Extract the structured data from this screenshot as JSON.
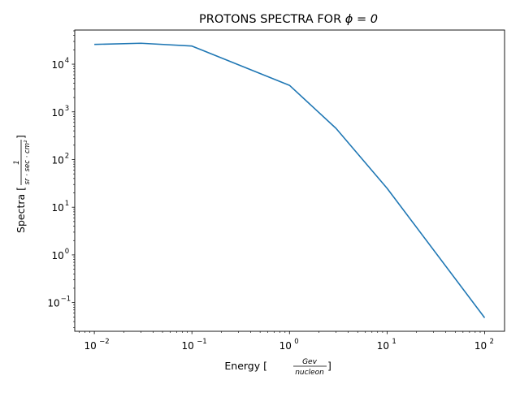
{
  "chart_data": {
    "type": "line",
    "title": "PROTONS SPECTRA FOR",
    "title_math": "ϕ = 0",
    "xlabel": "Energy [",
    "xlabel_frac": {
      "num": "Gev",
      "den": "nucleon"
    },
    "xlabel_close": "]",
    "ylabel": "Spectra [",
    "ylabel_frac": {
      "num": "1",
      "den": "sr · sec · cm²"
    },
    "ylabel_close": "]",
    "xscale": "log",
    "yscale": "log",
    "xlim": [
      0.0063,
      160
    ],
    "ylim": [
      0.025,
      52000
    ],
    "grid": false,
    "x_ticks": [
      {
        "base": "10",
        "exp": "−2",
        "value": 0.01
      },
      {
        "base": "10",
        "exp": "−1",
        "value": 0.1
      },
      {
        "base": "10",
        "exp": "0",
        "value": 1
      },
      {
        "base": "10",
        "exp": "1",
        "value": 10
      },
      {
        "base": "10",
        "exp": "2",
        "value": 100
      }
    ],
    "y_ticks": [
      {
        "base": "10",
        "exp": "−1",
        "value": 0.1
      },
      {
        "base": "10",
        "exp": "0",
        "value": 1
      },
      {
        "base": "10",
        "exp": "1",
        "value": 10
      },
      {
        "base": "10",
        "exp": "2",
        "value": 100
      },
      {
        "base": "10",
        "exp": "3",
        "value": 1000
      },
      {
        "base": "10",
        "exp": "4",
        "value": 10000
      }
    ],
    "series": [
      {
        "color": "#1f77b4",
        "x": [
          0.01,
          0.03,
          0.1,
          1,
          3,
          10,
          100
        ],
        "y": [
          26000,
          27500,
          24000,
          3600,
          450,
          25,
          0.048
        ]
      }
    ]
  }
}
